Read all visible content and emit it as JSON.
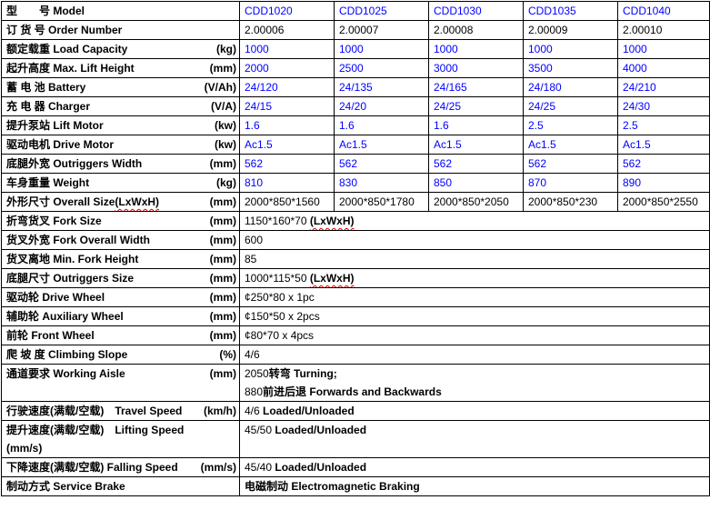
{
  "document": {
    "type": "product-specification-table",
    "colors": {
      "value_blue": "#0000ff",
      "text_black": "#000000",
      "spellcheck_squiggle_red": "#e00000",
      "border": "#000000",
      "background": "#ffffff"
    }
  },
  "table": {
    "model_count": 5,
    "rows": [
      {
        "label": "型　　号 Model",
        "unit": "",
        "values": [
          "CDD1020",
          "CDD1025",
          "CDD1030",
          "CDD1035",
          "CDD1040"
        ],
        "value_color": "blue"
      },
      {
        "label": "订 货 号 Order Number",
        "unit": "",
        "values": [
          "2.00006",
          "2.00007",
          "2.00008",
          "2.00009",
          "2.00010"
        ],
        "value_color": "black"
      },
      {
        "label": "额定载重 Load Capacity",
        "unit": "(kg)",
        "values": [
          "1000",
          "1000",
          "1000",
          "1000",
          "1000"
        ],
        "value_color": "blue"
      },
      {
        "label": "起升高度 Max. Lift Height",
        "unit": "(mm)",
        "values": [
          "2000",
          "2500",
          "3000",
          "3500",
          "4000"
        ],
        "value_color": "blue"
      },
      {
        "label": "蓄 电 池  Battery",
        "unit": "(V/Ah)",
        "values": [
          "24/120",
          "24/135",
          "24/165",
          "24/180",
          "24/210"
        ],
        "value_color": "blue"
      },
      {
        "label": "充 电 器 Charger",
        "unit": "(V/A)",
        "values": [
          "24/15",
          "24/20",
          "24/25",
          "24/25",
          "24/30"
        ],
        "value_color": "blue"
      },
      {
        "label": "提升泵站 Lift Motor",
        "unit": "(kw)",
        "values": [
          "1.6",
          "1.6",
          "1.6",
          "2.5",
          "2.5"
        ],
        "value_color": "blue"
      },
      {
        "label": "驱动电机 Drive Motor",
        "unit": "(kw)",
        "values": [
          "Ac1.5",
          "Ac1.5",
          "Ac1.5",
          "Ac1.5",
          "Ac1.5"
        ],
        "value_color": "blue"
      },
      {
        "label": "底腿外宽 Outriggers Width",
        "unit": "(mm)",
        "values": [
          "562",
          "562",
          "562",
          "562",
          "562"
        ],
        "value_color": "blue"
      },
      {
        "label": "车身重量 Weight",
        "unit": "(kg)",
        "values": [
          "810",
          "830",
          "850",
          "870",
          "890"
        ],
        "value_color": "blue"
      },
      {
        "label": "外形尺寸 Overall Size",
        "label_suffix": "(LxWxH)",
        "label_suffix_squiggle": true,
        "unit": "(mm)",
        "values": [
          "2000*850*1560",
          "2000*850*1780",
          "2000*850*2050",
          "2000*850*230",
          "2000*850*2550"
        ],
        "value_color": "black"
      },
      {
        "label": "折弯货叉 Fork Size",
        "unit": "(mm)",
        "value": "1150*160*70 ",
        "value_suffix": "(LxWxH)",
        "suffix_squiggle": true,
        "value_color": "black"
      },
      {
        "label": "货叉外宽 Fork Overall Width",
        "unit": "(mm)",
        "value": "600",
        "value_color": "black"
      },
      {
        "label": "货叉离地 Min. Fork Height",
        "unit": "(mm)",
        "value": "85",
        "value_color": "black"
      },
      {
        "label": "底腿尺寸 Outriggers Size",
        "unit": "(mm)",
        "value": "1000*115*50 ",
        "value_suffix": "(LxWxH)",
        "suffix_squiggle": true,
        "value_color": "black"
      },
      {
        "label": "驱动轮 Drive Wheel",
        "unit": "(mm)",
        "value": "¢250*80 x 1pc",
        "value_color": "black"
      },
      {
        "label": "辅助轮 Auxiliary Wheel",
        "unit": "(mm)",
        "value": "¢150*50 x 2pcs",
        "value_color": "black"
      },
      {
        "label": "前轮 Front Wheel",
        "unit": "(mm)",
        "value": "¢80*70 x 4pcs",
        "value_color": "black"
      },
      {
        "label": "爬 坡 度 Climbing Slope",
        "unit": "(%)",
        "value": "4/6",
        "value_color": "black"
      },
      {
        "label": "通道要求 Working Aisle",
        "unit": "(mm)",
        "value": "2050",
        "value_suffix": "转弯 Turning;",
        "value_line2": "880",
        "value_line2_suffix": "前进后退 Forwards and Backwards",
        "value_color": "black"
      },
      {
        "label": "行驶速度(满载/空载)　Travel Speed",
        "unit": "(km/h)",
        "value": "4/6 ",
        "value_suffix": "Loaded/Unloaded",
        "value_color": "black"
      },
      {
        "label": "提升速度(满载/空载)　Lifting Speed",
        "label_line2": "(mm/s)",
        "unit": "",
        "value": "45/50 ",
        "value_suffix": "Loaded/Unloaded",
        "value_color": "black"
      },
      {
        "label": "下降速度(满载/空载) Falling Speed",
        "unit": "(mm/s)",
        "value": "45/40 ",
        "value_suffix": "Loaded/Unloaded",
        "value_color": "black"
      },
      {
        "label": "制动方式 Service Brake",
        "unit": "",
        "value": "",
        "value_suffix": "电磁制动 Electromagnetic Braking",
        "value_color": "black"
      }
    ]
  }
}
